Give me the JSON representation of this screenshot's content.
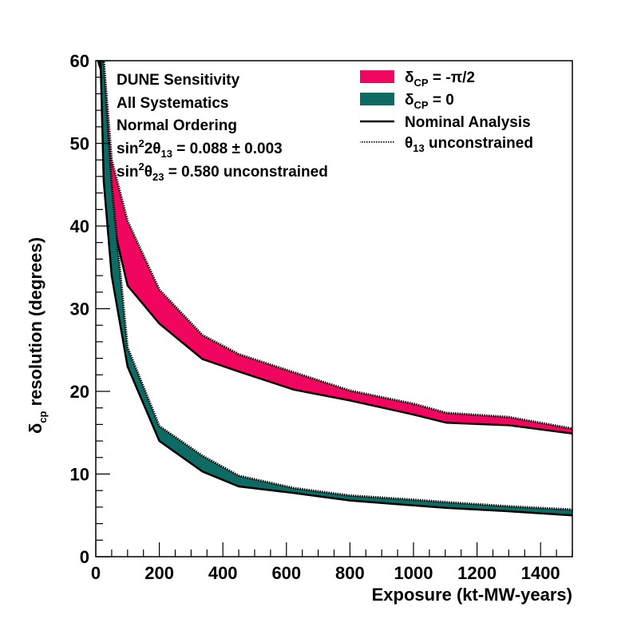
{
  "chart_data": {
    "type": "area",
    "xlabel": "Exposure (kt-MW-years)",
    "ylabel": {
      "main": "δ",
      "sub": "cp",
      "rest": " resolution (degrees)"
    },
    "xlim": [
      0,
      1500
    ],
    "ylim": [
      0,
      60
    ],
    "x_ticks": [
      0,
      200,
      400,
      600,
      800,
      1000,
      1200,
      1400
    ],
    "y_ticks": [
      0,
      10,
      20,
      30,
      40,
      50,
      60
    ],
    "grid": false,
    "legend_position": "top-right",
    "annotations": {
      "line1": "DUNE Sensitivity",
      "line2": "All Systematics",
      "line3": "Normal Ordering",
      "theta13_prefix": "sin",
      "theta13_sup": "2",
      "theta13_mid": "2θ",
      "theta13_sub": "13",
      "theta13_value": " = 0.088 ± 0.003",
      "theta23_prefix": "sin",
      "theta23_sup": "2",
      "theta23_mid": "θ",
      "theta23_sub": "23",
      "theta23_value": " = 0.580 unconstrained"
    },
    "legend": {
      "pi2": {
        "sym": "δ",
        "sub": "CP",
        "text": " = -π/2"
      },
      "zero": {
        "sym": "δ",
        "sub": "CP",
        "text": " = 0"
      },
      "nominal": "Nominal Analysis",
      "unconstrained": {
        "sym": "θ",
        "sub": "13",
        "text": " unconstrained"
      }
    },
    "series": [
      {
        "key": "pi2",
        "color": "#f0055f",
        "x": [
          7,
          15,
          25,
          50,
          100,
          200,
          336,
          450,
          624,
          800,
          1000,
          1104,
          1300,
          1500
        ],
        "nominal": [
          60,
          59,
          55,
          41,
          32.8,
          28.2,
          23.9,
          22.4,
          20.2,
          18.9,
          17.2,
          16.2,
          15.9,
          14.9
        ],
        "unconstrained": [
          60,
          60,
          60,
          48,
          40.6,
          32.3,
          26.8,
          24.5,
          22.3,
          20.1,
          18.5,
          17.4,
          16.9,
          15.5
        ]
      },
      {
        "key": "zero",
        "color": "#0d6b64",
        "x": [
          7,
          15,
          25,
          50,
          100,
          200,
          336,
          450,
          624,
          800,
          1000,
          1104,
          1300,
          1500
        ],
        "nominal": [
          60,
          60,
          45.5,
          34,
          23,
          14,
          10.3,
          8.5,
          7.7,
          6.8,
          6.2,
          5.9,
          5.5,
          5
        ],
        "unconstrained": [
          60,
          60,
          60,
          45,
          25.3,
          15.8,
          12.2,
          9.8,
          8.3,
          7.4,
          6.9,
          6.6,
          6.1,
          5.7
        ]
      }
    ]
  }
}
